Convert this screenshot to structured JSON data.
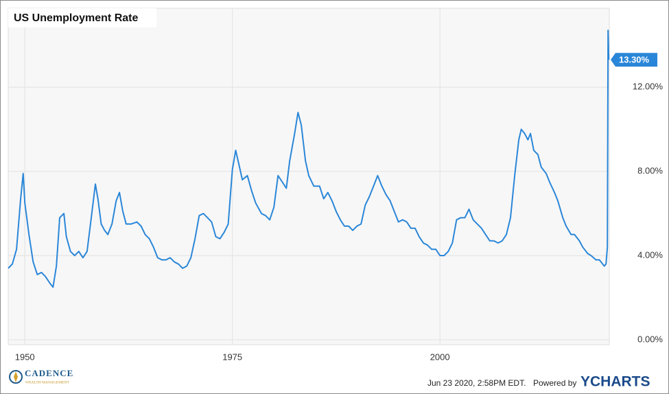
{
  "chart_data": {
    "type": "line",
    "title": "US Unemployment Rate",
    "x": [
      1948.0,
      1948.5,
      1949.0,
      1949.5,
      1949.8,
      1950.0,
      1950.5,
      1951.0,
      1951.5,
      1952.0,
      1952.5,
      1953.0,
      1953.4,
      1953.8,
      1954.2,
      1954.7,
      1955.0,
      1955.5,
      1956.0,
      1956.5,
      1957.0,
      1957.5,
      1958.0,
      1958.5,
      1958.8,
      1959.2,
      1959.6,
      1960.0,
      1960.5,
      1961.0,
      1961.4,
      1961.8,
      1962.2,
      1962.8,
      1963.5,
      1964.0,
      1964.5,
      1965.0,
      1965.5,
      1966.0,
      1966.5,
      1967.0,
      1967.5,
      1968.0,
      1968.5,
      1969.0,
      1969.5,
      1970.0,
      1970.5,
      1971.0,
      1971.5,
      1972.0,
      1972.5,
      1973.0,
      1973.5,
      1974.0,
      1974.5,
      1975.0,
      1975.4,
      1975.8,
      1976.2,
      1976.8,
      1977.3,
      1977.8,
      1978.5,
      1979.0,
      1979.5,
      1980.0,
      1980.5,
      1981.0,
      1981.5,
      1981.9,
      1982.5,
      1982.9,
      1983.3,
      1983.8,
      1984.2,
      1984.8,
      1985.5,
      1986.0,
      1986.5,
      1987.0,
      1987.5,
      1988.0,
      1988.5,
      1989.0,
      1989.5,
      1990.0,
      1990.5,
      1991.0,
      1991.5,
      1992.0,
      1992.5,
      1993.0,
      1993.5,
      1994.0,
      1994.5,
      1995.0,
      1995.5,
      1996.0,
      1996.5,
      1997.0,
      1997.5,
      1998.0,
      1998.5,
      1999.0,
      1999.5,
      2000.0,
      2000.5,
      2001.0,
      2001.5,
      2002.0,
      2002.5,
      2003.0,
      2003.5,
      2004.0,
      2004.5,
      2005.0,
      2005.5,
      2006.0,
      2006.5,
      2007.0,
      2007.5,
      2008.0,
      2008.5,
      2009.0,
      2009.5,
      2009.8,
      2010.2,
      2010.6,
      2010.9,
      2011.3,
      2011.8,
      2012.2,
      2012.8,
      2013.2,
      2013.8,
      2014.2,
      2014.8,
      2015.2,
      2015.8,
      2016.2,
      2016.8,
      2017.2,
      2017.8,
      2018.2,
      2018.8,
      2019.2,
      2019.8,
      2020.0,
      2020.17,
      2020.25,
      2020.33
    ],
    "series": [
      {
        "name": "US Unemployment Rate",
        "color": "#2a86d8",
        "values": [
          3.4,
          3.6,
          4.3,
          6.7,
          7.9,
          6.5,
          5.0,
          3.7,
          3.1,
          3.2,
          3.0,
          2.7,
          2.5,
          3.5,
          5.8,
          6.0,
          4.9,
          4.2,
          4.0,
          4.2,
          3.9,
          4.2,
          5.8,
          7.4,
          6.7,
          5.5,
          5.2,
          5.0,
          5.5,
          6.6,
          7.0,
          6.1,
          5.5,
          5.5,
          5.6,
          5.4,
          5.0,
          4.8,
          4.4,
          3.9,
          3.8,
          3.8,
          3.9,
          3.7,
          3.6,
          3.4,
          3.5,
          3.9,
          4.8,
          5.9,
          6.0,
          5.8,
          5.6,
          4.9,
          4.8,
          5.1,
          5.5,
          8.1,
          9.0,
          8.3,
          7.6,
          7.8,
          7.1,
          6.5,
          6.0,
          5.9,
          5.7,
          6.3,
          7.8,
          7.5,
          7.2,
          8.5,
          9.8,
          10.8,
          10.2,
          8.5,
          7.8,
          7.3,
          7.3,
          6.7,
          7.0,
          6.6,
          6.1,
          5.7,
          5.4,
          5.4,
          5.2,
          5.4,
          5.5,
          6.4,
          6.8,
          7.3,
          7.8,
          7.3,
          6.9,
          6.6,
          6.1,
          5.6,
          5.7,
          5.6,
          5.3,
          5.3,
          4.9,
          4.6,
          4.5,
          4.3,
          4.3,
          4.0,
          4.0,
          4.2,
          4.6,
          5.7,
          5.8,
          5.8,
          6.2,
          5.7,
          5.5,
          5.3,
          5.0,
          4.7,
          4.7,
          4.6,
          4.7,
          5.0,
          5.8,
          7.8,
          9.5,
          10.0,
          9.8,
          9.5,
          9.8,
          9.0,
          8.8,
          8.2,
          7.9,
          7.5,
          7.0,
          6.6,
          5.8,
          5.4,
          5.0,
          5.0,
          4.7,
          4.4,
          4.1,
          4.0,
          3.8,
          3.8,
          3.5,
          3.6,
          4.4,
          14.7,
          13.3
        ]
      }
    ],
    "current": {
      "value": 13.3,
      "label": "13.30%"
    },
    "xlim": [
      1948.0,
      2020.4
    ],
    "ylim": [
      -0.23,
      15.75
    ],
    "xticks": [
      1950,
      1975,
      2000
    ],
    "yticks": [
      {
        "value": 0,
        "label": "0.00%"
      },
      {
        "value": 4,
        "label": "4.00%"
      },
      {
        "value": 8,
        "label": "8.00%"
      },
      {
        "value": 12,
        "label": "12.00%"
      }
    ],
    "grid": true
  },
  "footer": {
    "timestamp": "Jun 23 2020, 2:58PM EDT.",
    "powered": "Powered by",
    "brand": "YCHARTS"
  },
  "logo": {
    "name": "CADENCE",
    "tagline": "WEALTH MANAGEMENT"
  }
}
